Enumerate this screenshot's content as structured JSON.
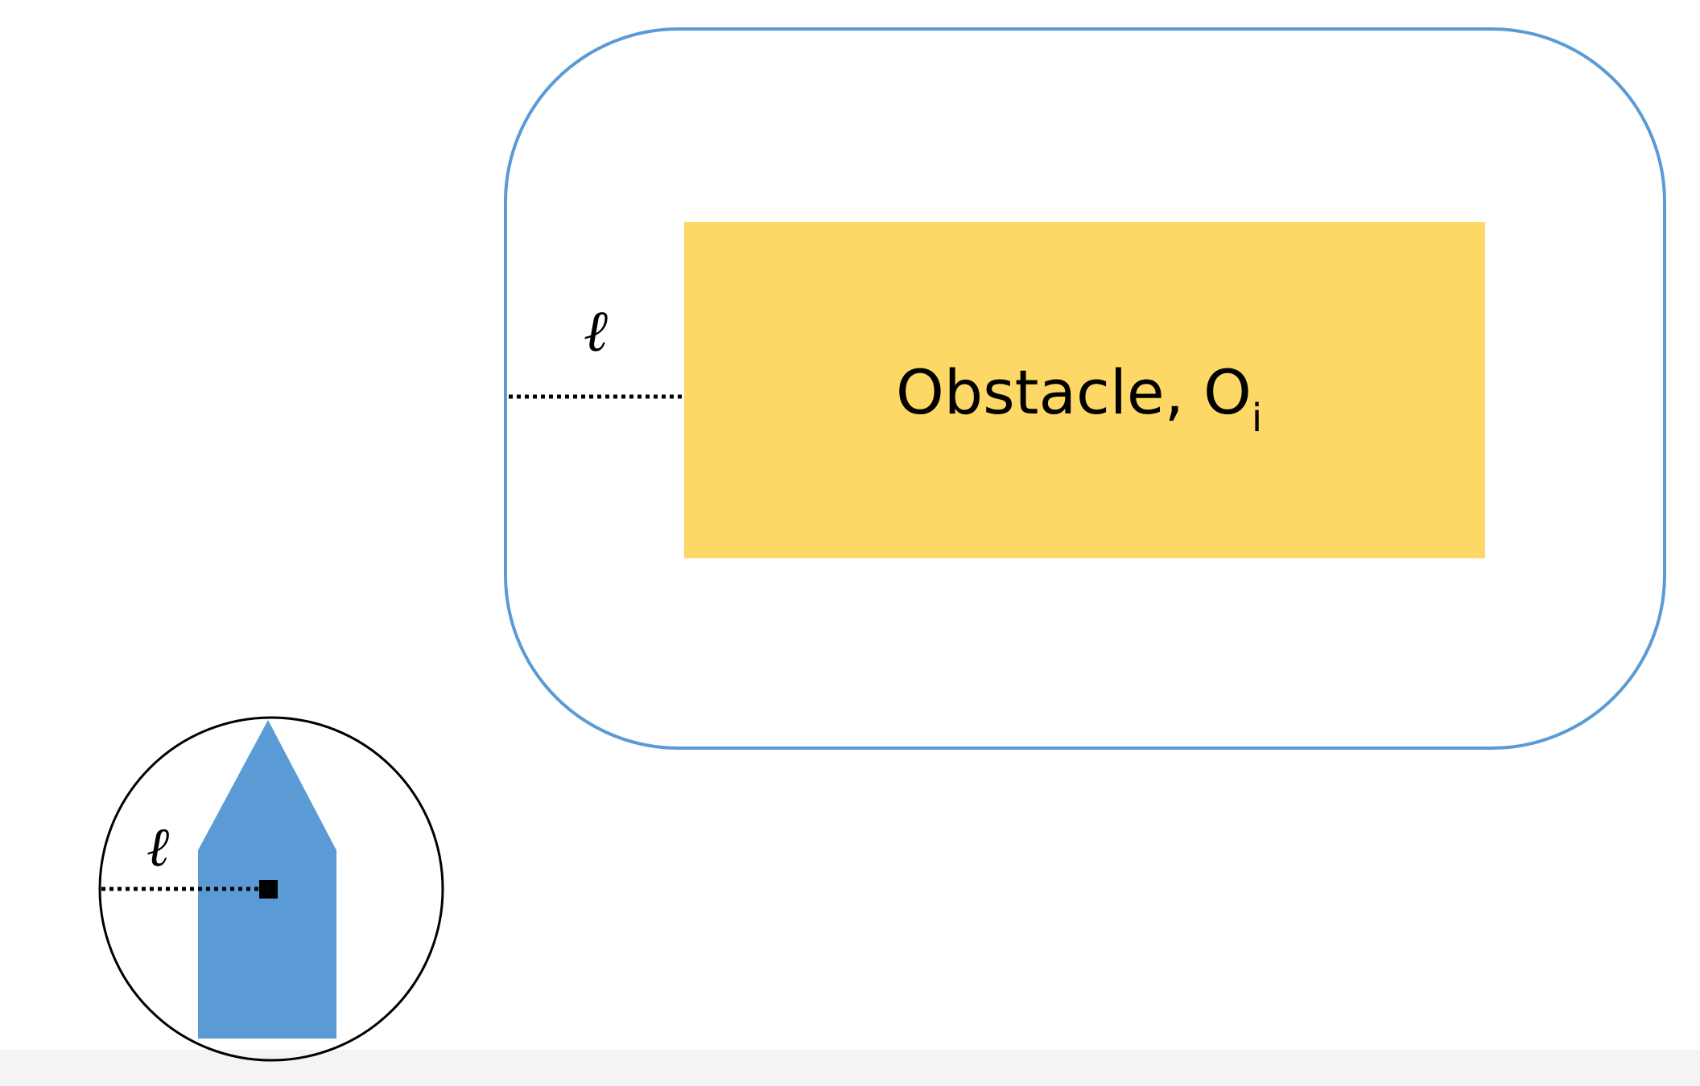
{
  "obstacle": {
    "label": "Obstacle, O",
    "subscript": "i"
  },
  "safety_margin": {
    "symbol": "ℓ"
  },
  "robot": {
    "radius_symbol": "ℓ"
  },
  "colors": {
    "inflated_boundary": "#5b9bd5",
    "obstacle_fill": "#fdd866",
    "robot_fill": "#5b9bd5",
    "robot_circle": "#000000",
    "dotted_line": "#000000",
    "text": "#000000"
  }
}
